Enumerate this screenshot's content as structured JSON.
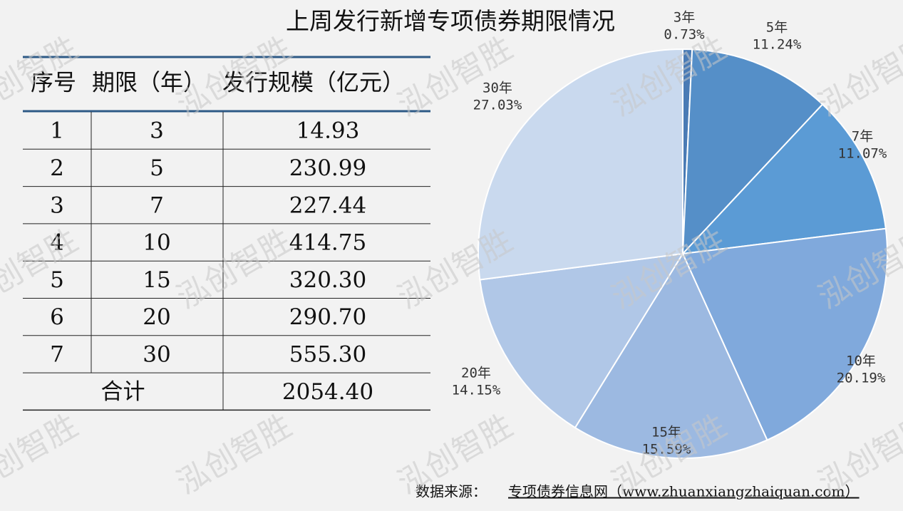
{
  "title": "上周发行新增专项债券期限情况",
  "watermark": "泓创智胜",
  "table": {
    "headers": [
      "序号",
      "期限（年）",
      "发行规模（亿元）"
    ],
    "rows": [
      [
        "1",
        "3",
        "14.93"
      ],
      [
        "2",
        "5",
        "230.99"
      ],
      [
        "3",
        "7",
        "227.44"
      ],
      [
        "4",
        "10",
        "414.75"
      ],
      [
        "5",
        "15",
        "320.30"
      ],
      [
        "6",
        "20",
        "290.70"
      ],
      [
        "7",
        "30",
        "555.30"
      ]
    ],
    "total": [
      "合计",
      "2054.40"
    ]
  },
  "chart_data": {
    "type": "pie",
    "categories": [
      "3年",
      "5年",
      "7年",
      "10年",
      "15年",
      "20年",
      "30年"
    ],
    "values": [
      0.73,
      11.24,
      11.07,
      20.19,
      15.59,
      14.15,
      27.03
    ],
    "value_labels": [
      "0.73%",
      "11.24%",
      "11.07%",
      "20.19%",
      "15.59%",
      "14.15%",
      "27.03%"
    ],
    "colors": [
      "#4a7bb5",
      "#558fc8",
      "#5b9bd5",
      "#80a9dc",
      "#9cb9e1",
      "#b0c7e7",
      "#c9d9ee"
    ]
  },
  "footer": {
    "label": "数据来源：",
    "source": "专项债券信息网（www.zhuanxiangzhaiquan.com）"
  }
}
